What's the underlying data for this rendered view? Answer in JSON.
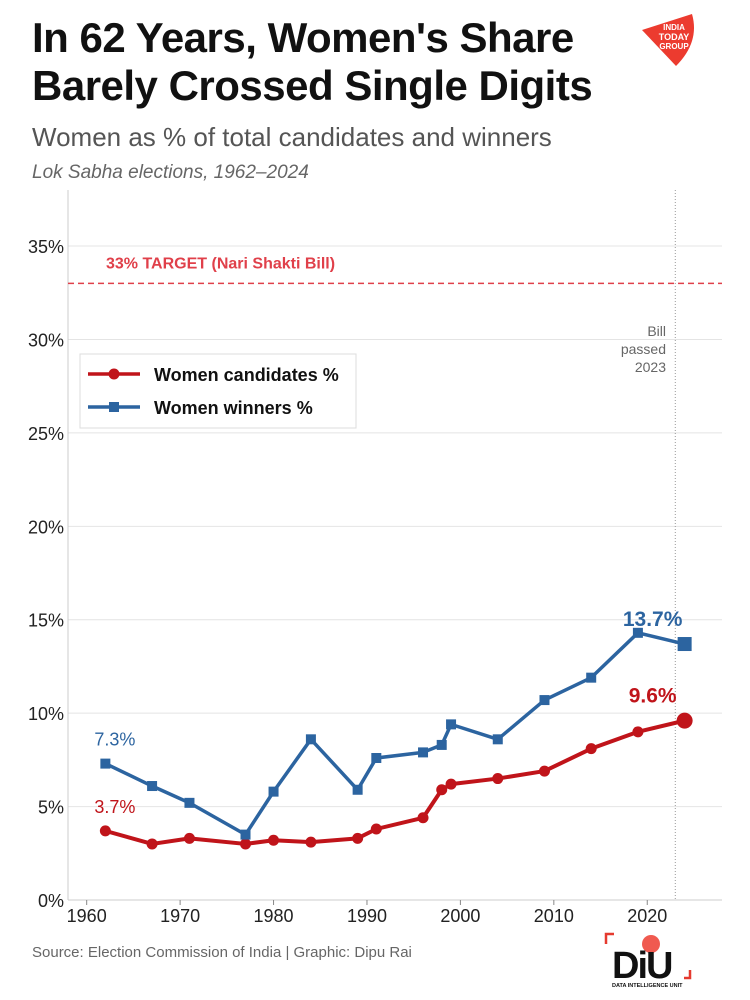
{
  "header": {
    "title_line1": "In 62 Years, Women's Share",
    "title_line2": "Barely Crossed Single Digits",
    "subtitle": "Women as % of total candidates and winners",
    "subsubtitle": "Lok Sabha elections, 1962–2024"
  },
  "footer": {
    "source": "Source: Election Commission of India | Graphic: Dipu Rai"
  },
  "logos": {
    "top": "INDIA TODAY GROUP",
    "bottom": "DIU DATA INTELLIGENCE UNIT"
  },
  "chart_data": {
    "type": "line",
    "title": "Women as % of total candidates and winners",
    "x": [
      1962,
      1967,
      1971,
      1977,
      1980,
      1984,
      1989,
      1991,
      1996,
      1998,
      1999,
      2004,
      2009,
      2014,
      2019,
      2024
    ],
    "series": [
      {
        "name": "Women candidates %",
        "color": "#c0141a",
        "marker": "circle",
        "values": [
          3.7,
          3.0,
          3.3,
          3.0,
          3.2,
          3.1,
          3.3,
          3.8,
          4.4,
          5.9,
          6.2,
          6.5,
          6.9,
          8.1,
          9.0,
          9.6
        ]
      },
      {
        "name": "Women winners %",
        "color": "#2c64a0",
        "marker": "square",
        "values": [
          7.3,
          6.1,
          5.2,
          3.5,
          5.8,
          8.6,
          5.9,
          7.6,
          7.9,
          8.3,
          9.4,
          8.6,
          10.7,
          11.9,
          14.3,
          13.7
        ]
      }
    ],
    "xlim": [
      1958,
      2028
    ],
    "ylim": [
      0,
      38
    ],
    "x_ticks": [
      "1960",
      "1970",
      "1980",
      "1990",
      "2000",
      "2010",
      "2020"
    ],
    "y_ticks": [
      "0%",
      "5%",
      "10%",
      "15%",
      "20%",
      "25%",
      "30%",
      "35%"
    ],
    "grid": true,
    "legend_position": "upper-left",
    "reference_line": {
      "value": 33,
      "label": "33% TARGET (Nari Shakti Bill)",
      "color": "#e0404a"
    },
    "vline": {
      "x": 2023,
      "label": [
        "Bill",
        "passed",
        "2023"
      ]
    },
    "annotations": [
      {
        "text": "7.3%",
        "series": 1,
        "index": 0
      },
      {
        "text": "3.7%",
        "series": 0,
        "index": 0
      },
      {
        "text": "13.7%",
        "series": 1,
        "index": 15
      },
      {
        "text": "9.6%",
        "series": 0,
        "index": 15
      }
    ]
  }
}
